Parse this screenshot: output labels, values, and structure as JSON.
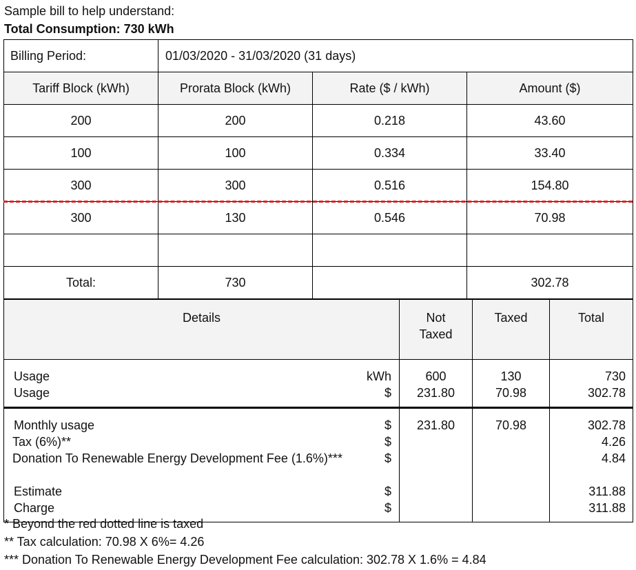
{
  "intro": "Sample bill to help understand:",
  "title": "Total Consumption: 730 kWh",
  "billing": {
    "label": "Billing Period:",
    "value": "01/03/2020 - 31/03/2020 (31 days)"
  },
  "tariff_table": {
    "headers": [
      "Tariff Block (kWh)",
      "Prorata Block (kWh)",
      "Rate ($ / kWh)",
      "Amount ($)"
    ],
    "rows": [
      [
        "200",
        "200",
        "0.218",
        "43.60"
      ],
      [
        "100",
        "100",
        "0.334",
        "33.40"
      ],
      [
        "300",
        "300",
        "0.516",
        "154.80"
      ],
      [
        "300",
        "130",
        "0.546",
        "70.98"
      ],
      [
        "",
        "",
        "",
        ""
      ]
    ],
    "total": {
      "label": "Total:",
      "prorata": "730",
      "rate": "",
      "amount": "302.78"
    },
    "taxed_line_color": "#e02020"
  },
  "details_table": {
    "headers": {
      "details": "Details",
      "not_taxed": "Not Taxed",
      "taxed": "Taxed",
      "total": "Total"
    },
    "usage": [
      {
        "label": "Usage",
        "unit": "kWh",
        "not_taxed": "600",
        "taxed": "130",
        "total": "730"
      },
      {
        "label": "Usage",
        "unit": "$",
        "not_taxed": "231.80",
        "taxed": "70.98",
        "total": "302.78"
      }
    ],
    "summary": [
      {
        "label": "Monthly usage",
        "unit": "$",
        "not_taxed": "231.80",
        "taxed": "70.98",
        "total": "302.78"
      },
      {
        "label": "Tax (6%)**",
        "unit": "$",
        "total": "4.26"
      },
      {
        "label": "Donation To Renewable Energy Development Fee (1.6%)***",
        "unit": "$",
        "total": "4.84"
      }
    ],
    "charges": [
      {
        "label": "Estimate",
        "unit": "$",
        "total": "311.88"
      },
      {
        "label": "Charge",
        "unit": "$",
        "total": "311.88"
      }
    ]
  },
  "notes": [
    "* Beyond the red dotted line is taxed",
    "** Tax calculation: 70.98 X 6%= 4.26",
    "*** Donation To Renewable Energy Development Fee calculation: 302.78 X 1.6% = 4.84"
  ]
}
